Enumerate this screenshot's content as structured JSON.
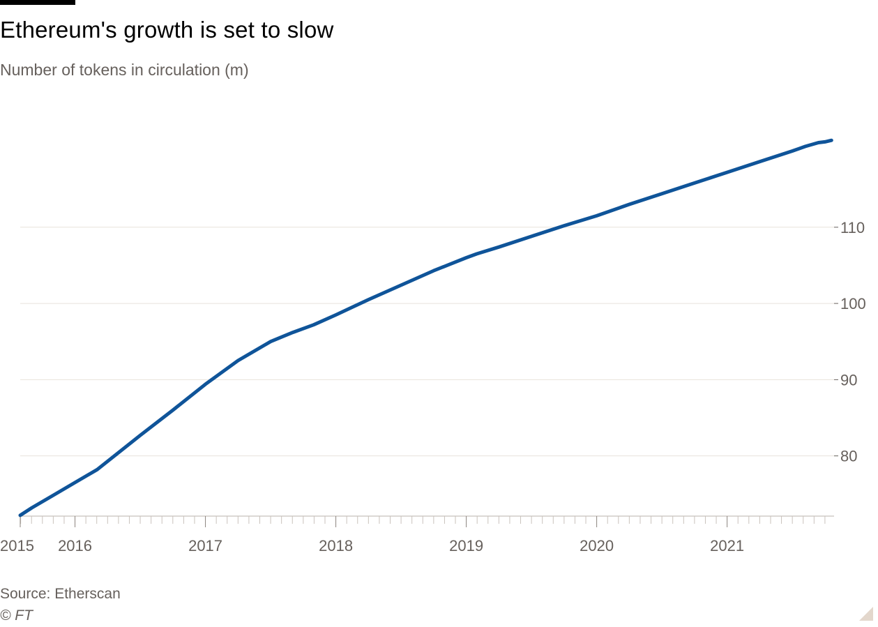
{
  "title": "Ethereum's growth is set to slow",
  "subtitle": "Number of tokens in circulation (m)",
  "source": "Source: Etherscan",
  "copyright": "© FT",
  "colors": {
    "line": "#0f5499",
    "grid": "#e8e2dc",
    "axis": "#66605c"
  },
  "chart_data": {
    "type": "line",
    "title": "Ethereum's growth is set to slow",
    "subtitle": "Number of tokens in circulation (m)",
    "xlabel": "",
    "ylabel": "",
    "xlim": [
      2015.58,
      2021.82
    ],
    "ylim": [
      72.1,
      127.0
    ],
    "y_axis_side": "right",
    "grid": "horizontal",
    "x_ticks": [
      {
        "label": "2015",
        "value": 2015.58
      },
      {
        "label": "2016",
        "value": 2016.0
      },
      {
        "label": "2017",
        "value": 2017.0
      },
      {
        "label": "2018",
        "value": 2018.0
      },
      {
        "label": "2019",
        "value": 2019.0
      },
      {
        "label": "2020",
        "value": 2020.0
      },
      {
        "label": "2021",
        "value": 2021.0
      }
    ],
    "y_ticks": [
      {
        "label": "80",
        "value": 80
      },
      {
        "label": "90",
        "value": 90
      },
      {
        "label": "100",
        "value": 100
      },
      {
        "label": "110",
        "value": 110
      }
    ],
    "series": [
      {
        "x": [
          2015.58,
          2015.67,
          2015.83,
          2016.0,
          2016.17,
          2016.5,
          2016.75,
          2017.0,
          2017.25,
          2017.5,
          2017.67,
          2017.83,
          2018.0,
          2018.25,
          2018.5,
          2018.75,
          2019.0,
          2019.08,
          2019.25,
          2019.5,
          2019.75,
          2020.0,
          2020.25,
          2020.5,
          2020.75,
          2021.0,
          2021.25,
          2021.5,
          2021.6,
          2021.7,
          2021.75,
          2021.8
        ],
        "y": [
          72.2,
          73.2,
          74.8,
          76.5,
          78.2,
          82.7,
          86.0,
          89.4,
          92.5,
          95.0,
          96.2,
          97.2,
          98.5,
          100.5,
          102.4,
          104.3,
          106.0,
          106.5,
          107.4,
          108.8,
          110.2,
          111.5,
          113.0,
          114.4,
          115.8,
          117.2,
          118.6,
          120.0,
          120.6,
          121.1,
          121.2,
          121.4
        ]
      }
    ]
  }
}
